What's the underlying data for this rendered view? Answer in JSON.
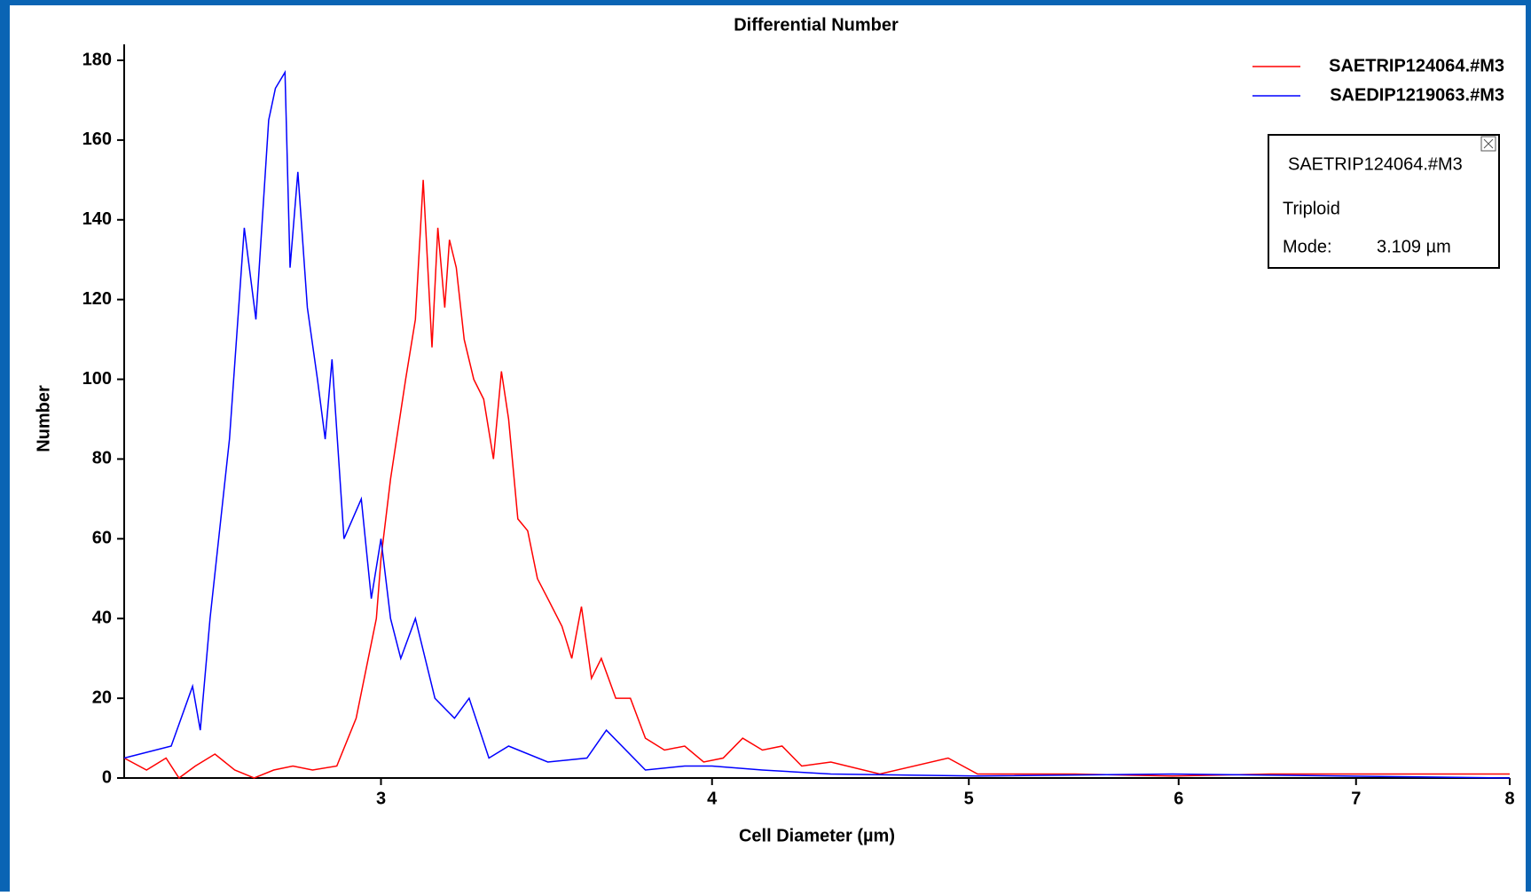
{
  "chart_data": {
    "type": "line",
    "title": "Differential Number",
    "x_label": "Cell Diameter (µm)",
    "y_label": "Number",
    "xscale": "log",
    "xlim": [
      2.4,
      8
    ],
    "xticks": [
      3,
      4,
      5,
      6,
      7,
      8
    ],
    "ylim": [
      0,
      180
    ],
    "yticks": [
      0,
      20,
      40,
      60,
      80,
      100,
      120,
      140,
      160,
      180
    ],
    "grid": false,
    "legend": "top-right",
    "series": [
      {
        "name": "SAETRIP124064.#M3",
        "color": "#ff0000",
        "x": [
          2.4,
          2.447,
          2.489,
          2.517,
          2.553,
          2.597,
          2.642,
          2.687,
          2.733,
          2.779,
          2.827,
          2.887,
          2.936,
          2.988,
          3.0,
          3.025,
          3.065,
          3.091,
          3.112,
          3.136,
          3.152,
          3.171,
          3.184,
          3.203,
          3.225,
          3.252,
          3.28,
          3.308,
          3.331,
          3.352,
          3.379,
          3.408,
          3.437,
          3.468,
          3.511,
          3.541,
          3.571,
          3.602,
          3.633,
          3.679,
          3.726,
          3.775,
          3.838,
          3.906,
          3.971,
          4.039,
          4.108,
          4.179,
          4.251,
          4.324,
          4.435,
          4.628,
          4.911,
          5.038,
          5.484,
          5.968,
          6.497,
          7.072,
          8.0
        ],
        "values": [
          5,
          2,
          5,
          0,
          3,
          6,
          2,
          0,
          2,
          3,
          2,
          3,
          15,
          40,
          55,
          75,
          100,
          115,
          150,
          108,
          138,
          118,
          135,
          128,
          110,
          100,
          95,
          80,
          102,
          90,
          65,
          62,
          50,
          45,
          38,
          30,
          43,
          25,
          30,
          20,
          20,
          10,
          7,
          8,
          4,
          5,
          10,
          7,
          8,
          3,
          4,
          1,
          5,
          1,
          1,
          0.5,
          1,
          1,
          1
        ]
      },
      {
        "name": "SAEDIP1219063.#M3",
        "color": "#0000ff",
        "x": [
          2.4,
          2.5,
          2.547,
          2.564,
          2.586,
          2.63,
          2.664,
          2.691,
          2.721,
          2.737,
          2.76,
          2.772,
          2.791,
          2.814,
          2.839,
          2.858,
          2.875,
          2.905,
          2.949,
          2.975,
          3.0,
          3.025,
          3.052,
          3.091,
          3.144,
          3.198,
          3.239,
          3.295,
          3.352,
          3.468,
          3.588,
          3.649,
          3.775,
          3.906,
          4.0,
          4.179,
          4.435,
          5.038,
          5.968,
          8.0
        ],
        "values": [
          5,
          8,
          23,
          12,
          40,
          85,
          138,
          115,
          165,
          173,
          177,
          128,
          152,
          118,
          100,
          85,
          105,
          60,
          70,
          45,
          60,
          40,
          30,
          40,
          20,
          15,
          20,
          5,
          8,
          4,
          5,
          12,
          2,
          3,
          3,
          2,
          1,
          0.5,
          1,
          0
        ]
      }
    ],
    "annotation": {
      "title": "SAETRIP124064.#M3",
      "label": "Triploid",
      "mode_label": "Mode:",
      "mode_value": "3.109 µm"
    }
  }
}
